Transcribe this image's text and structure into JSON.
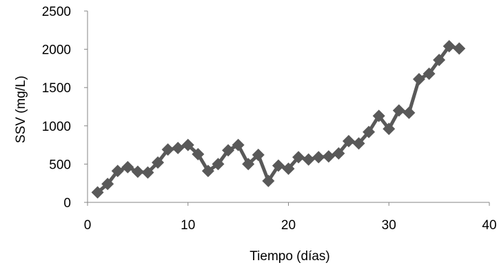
{
  "chart_data": {
    "type": "line",
    "xlabel": "Tiempo (días)",
    "ylabel": "SSV (mg/L)",
    "xlim": [
      0,
      40
    ],
    "ylim": [
      0,
      2500
    ],
    "xticks": [
      0,
      10,
      20,
      30,
      40
    ],
    "yticks": [
      0,
      500,
      1000,
      1500,
      2000,
      2500
    ],
    "grid": false,
    "legend": "none",
    "marker": "diamond",
    "color": "#595959",
    "series": [
      {
        "x": [
          1,
          2,
          3,
          4,
          5,
          6,
          7,
          8,
          9,
          10,
          11,
          12,
          13,
          14,
          15,
          16,
          17,
          18,
          19,
          20,
          21,
          22,
          23,
          24,
          25,
          26,
          27,
          28,
          29,
          30,
          31,
          32,
          33,
          34,
          35,
          36,
          37
        ],
        "values": [
          130,
          240,
          410,
          460,
          400,
          390,
          520,
          690,
          710,
          750,
          630,
          410,
          500,
          680,
          750,
          500,
          620,
          280,
          480,
          440,
          590,
          560,
          590,
          600,
          640,
          800,
          770,
          920,
          1130,
          960,
          1200,
          1170,
          1610,
          1680,
          1860,
          2040,
          2010
        ]
      }
    ]
  }
}
